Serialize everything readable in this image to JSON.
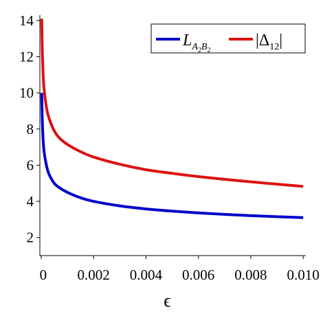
{
  "chart_data": {
    "type": "line",
    "title": "",
    "xlabel": "ϵ",
    "ylabel": "",
    "xlim": [
      -5e-05,
      0.0101
    ],
    "ylim": [
      1,
      14.3
    ],
    "xticks": [
      0,
      0.002,
      0.004,
      0.006,
      0.008,
      0.01
    ],
    "xtick_labels": [
      "0",
      "0.002",
      "0.004",
      "0.006",
      "0.008",
      "0.010"
    ],
    "yticks": [
      2,
      4,
      6,
      8,
      10,
      12,
      14
    ],
    "ytick_labels": [
      "2",
      "4",
      "6",
      "8",
      "10",
      "12",
      "14"
    ],
    "grid": false,
    "legend_position": "top-right",
    "series": [
      {
        "name": "L_{A2B2}",
        "color": "#0000cc",
        "x": [
          2e-05,
          5e-05,
          0.0001,
          0.0002,
          0.0003,
          0.0005,
          0.0007,
          0.001,
          0.0015,
          0.002,
          0.003,
          0.004,
          0.005,
          0.006,
          0.007,
          0.008,
          0.009,
          0.01
        ],
        "y": [
          10.0,
          8.2,
          6.9,
          6.0,
          5.5,
          5.0,
          4.75,
          4.5,
          4.2,
          4.0,
          3.75,
          3.58,
          3.46,
          3.36,
          3.28,
          3.21,
          3.15,
          3.1
        ]
      },
      {
        "name": "|Δ12|",
        "color": "#dd1111",
        "x": [
          2e-05,
          5e-05,
          0.0001,
          0.0002,
          0.0003,
          0.0005,
          0.0007,
          0.001,
          0.0015,
          0.002,
          0.003,
          0.004,
          0.005,
          0.006,
          0.007,
          0.008,
          0.009,
          0.01
        ],
        "y": [
          14.1,
          12.0,
          10.4,
          9.2,
          8.6,
          7.9,
          7.5,
          7.15,
          6.75,
          6.45,
          6.05,
          5.75,
          5.55,
          5.37,
          5.22,
          5.08,
          4.95,
          4.83
        ]
      }
    ],
    "legend": {
      "entries": [
        {
          "main": "L",
          "sub": "A",
          "sub2": "2",
          "sub3": "B",
          "sub4": "2",
          "color": "#0000cc"
        },
        {
          "main": "|Δ",
          "sub": "12",
          "tail": "|",
          "color": "#dd1111"
        }
      ]
    }
  }
}
